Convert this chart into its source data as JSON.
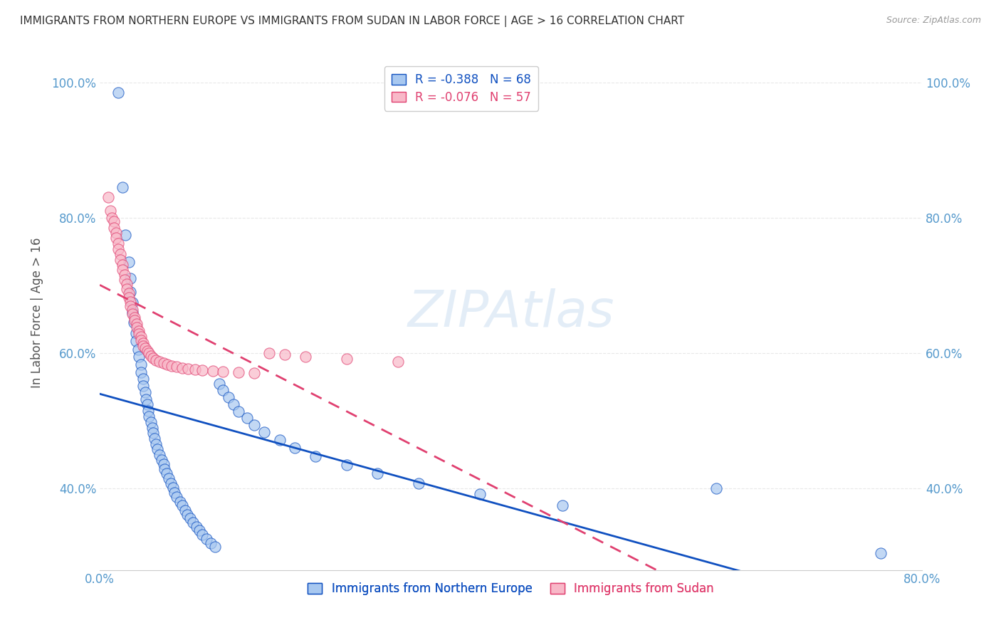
{
  "title": "IMMIGRANTS FROM NORTHERN EUROPE VS IMMIGRANTS FROM SUDAN IN LABOR FORCE | AGE > 16 CORRELATION CHART",
  "source": "Source: ZipAtlas.com",
  "ylabel": "In Labor Force | Age > 16",
  "xmin": 0.0,
  "xmax": 0.8,
  "ymin": 0.28,
  "ymax": 1.04,
  "legend_blue": {
    "R": -0.388,
    "N": 68,
    "label": "Immigrants from Northern Europe"
  },
  "legend_pink": {
    "R": -0.076,
    "N": 57,
    "label": "Immigrants from Sudan"
  },
  "xtick_labels": [
    "0.0%",
    "",
    "",
    "",
    "80.0%"
  ],
  "xtick_vals": [
    0.0,
    0.2,
    0.4,
    0.6,
    0.8
  ],
  "ytick_labels": [
    "40.0%",
    "60.0%",
    "80.0%",
    "100.0%"
  ],
  "ytick_vals": [
    0.4,
    0.6,
    0.8,
    1.0
  ],
  "blue_scatter": [
    [
      0.018,
      0.985
    ],
    [
      0.022,
      0.845
    ],
    [
      0.025,
      0.775
    ],
    [
      0.028,
      0.735
    ],
    [
      0.03,
      0.71
    ],
    [
      0.03,
      0.69
    ],
    [
      0.032,
      0.675
    ],
    [
      0.032,
      0.66
    ],
    [
      0.033,
      0.645
    ],
    [
      0.035,
      0.63
    ],
    [
      0.035,
      0.618
    ],
    [
      0.037,
      0.605
    ],
    [
      0.038,
      0.595
    ],
    [
      0.04,
      0.583
    ],
    [
      0.04,
      0.572
    ],
    [
      0.042,
      0.562
    ],
    [
      0.042,
      0.552
    ],
    [
      0.044,
      0.542
    ],
    [
      0.045,
      0.532
    ],
    [
      0.046,
      0.524
    ],
    [
      0.047,
      0.515
    ],
    [
      0.048,
      0.507
    ],
    [
      0.05,
      0.498
    ],
    [
      0.051,
      0.49
    ],
    [
      0.052,
      0.482
    ],
    [
      0.053,
      0.474
    ],
    [
      0.055,
      0.466
    ],
    [
      0.056,
      0.458
    ],
    [
      0.058,
      0.45
    ],
    [
      0.06,
      0.443
    ],
    [
      0.062,
      0.436
    ],
    [
      0.063,
      0.429
    ],
    [
      0.065,
      0.422
    ],
    [
      0.067,
      0.415
    ],
    [
      0.069,
      0.408
    ],
    [
      0.071,
      0.401
    ],
    [
      0.073,
      0.394
    ],
    [
      0.075,
      0.388
    ],
    [
      0.078,
      0.381
    ],
    [
      0.08,
      0.375
    ],
    [
      0.083,
      0.368
    ],
    [
      0.085,
      0.362
    ],
    [
      0.088,
      0.356
    ],
    [
      0.091,
      0.35
    ],
    [
      0.094,
      0.344
    ],
    [
      0.097,
      0.338
    ],
    [
      0.1,
      0.332
    ],
    [
      0.104,
      0.326
    ],
    [
      0.108,
      0.32
    ],
    [
      0.112,
      0.314
    ],
    [
      0.116,
      0.555
    ],
    [
      0.12,
      0.545
    ],
    [
      0.125,
      0.535
    ],
    [
      0.13,
      0.524
    ],
    [
      0.135,
      0.514
    ],
    [
      0.143,
      0.504
    ],
    [
      0.15,
      0.494
    ],
    [
      0.16,
      0.484
    ],
    [
      0.175,
      0.472
    ],
    [
      0.19,
      0.46
    ],
    [
      0.21,
      0.448
    ],
    [
      0.24,
      0.435
    ],
    [
      0.27,
      0.422
    ],
    [
      0.31,
      0.408
    ],
    [
      0.37,
      0.392
    ],
    [
      0.45,
      0.375
    ],
    [
      0.6,
      0.4
    ],
    [
      0.76,
      0.305
    ]
  ],
  "pink_scatter": [
    [
      0.008,
      0.83
    ],
    [
      0.01,
      0.81
    ],
    [
      0.012,
      0.8
    ],
    [
      0.014,
      0.795
    ],
    [
      0.014,
      0.785
    ],
    [
      0.016,
      0.778
    ],
    [
      0.016,
      0.77
    ],
    [
      0.018,
      0.762
    ],
    [
      0.018,
      0.754
    ],
    [
      0.02,
      0.746
    ],
    [
      0.02,
      0.738
    ],
    [
      0.022,
      0.73
    ],
    [
      0.022,
      0.723
    ],
    [
      0.024,
      0.716
    ],
    [
      0.024,
      0.708
    ],
    [
      0.026,
      0.702
    ],
    [
      0.026,
      0.695
    ],
    [
      0.028,
      0.688
    ],
    [
      0.028,
      0.682
    ],
    [
      0.03,
      0.676
    ],
    [
      0.03,
      0.67
    ],
    [
      0.032,
      0.664
    ],
    [
      0.032,
      0.658
    ],
    [
      0.034,
      0.653
    ],
    [
      0.034,
      0.648
    ],
    [
      0.036,
      0.643
    ],
    [
      0.036,
      0.638
    ],
    [
      0.038,
      0.633
    ],
    [
      0.038,
      0.628
    ],
    [
      0.04,
      0.624
    ],
    [
      0.04,
      0.619
    ],
    [
      0.042,
      0.615
    ],
    [
      0.042,
      0.611
    ],
    [
      0.044,
      0.607
    ],
    [
      0.046,
      0.603
    ],
    [
      0.048,
      0.6
    ],
    [
      0.05,
      0.596
    ],
    [
      0.052,
      0.593
    ],
    [
      0.055,
      0.59
    ],
    [
      0.058,
      0.587
    ],
    [
      0.062,
      0.585
    ],
    [
      0.066,
      0.583
    ],
    [
      0.07,
      0.581
    ],
    [
      0.075,
      0.58
    ],
    [
      0.08,
      0.578
    ],
    [
      0.086,
      0.577
    ],
    [
      0.093,
      0.576
    ],
    [
      0.1,
      0.575
    ],
    [
      0.11,
      0.574
    ],
    [
      0.12,
      0.573
    ],
    [
      0.135,
      0.572
    ],
    [
      0.15,
      0.571
    ],
    [
      0.165,
      0.6
    ],
    [
      0.18,
      0.598
    ],
    [
      0.2,
      0.595
    ],
    [
      0.24,
      0.592
    ],
    [
      0.29,
      0.588
    ]
  ],
  "blue_color": "#A8C8F0",
  "pink_color": "#F8B8C8",
  "blue_line_color": "#1050C0",
  "pink_line_color": "#E04070",
  "background_color": "#FFFFFF",
  "grid_color": "#E8E8E8"
}
